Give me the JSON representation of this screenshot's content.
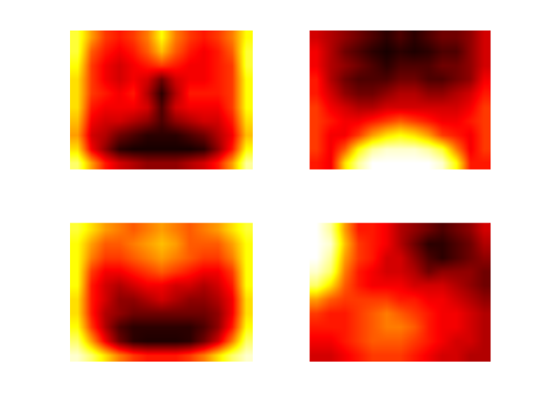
{
  "chart_data": [
    {
      "type": "heatmap",
      "color": "hot",
      "tick_labels": false,
      "zlim": [
        0,
        1
      ],
      "cells": [
        [
          0.8,
          0.6,
          0.45,
          0.4,
          0.45,
          0.55,
          0.75,
          0.55,
          0.45,
          0.4,
          0.45,
          0.55,
          0.75
        ],
        [
          0.8,
          0.5,
          0.4,
          0.35,
          0.4,
          0.5,
          0.65,
          0.5,
          0.4,
          0.35,
          0.4,
          0.5,
          0.8
        ],
        [
          0.75,
          0.45,
          0.35,
          0.3,
          0.35,
          0.4,
          0.45,
          0.4,
          0.35,
          0.35,
          0.4,
          0.45,
          0.8
        ],
        [
          0.7,
          0.45,
          0.35,
          0.3,
          0.35,
          0.3,
          0.15,
          0.3,
          0.35,
          0.35,
          0.4,
          0.45,
          0.75
        ],
        [
          0.7,
          0.45,
          0.4,
          0.35,
          0.4,
          0.25,
          0.05,
          0.25,
          0.4,
          0.4,
          0.4,
          0.45,
          0.75
        ],
        [
          0.7,
          0.4,
          0.35,
          0.35,
          0.35,
          0.3,
          0.1,
          0.3,
          0.35,
          0.35,
          0.35,
          0.45,
          0.75
        ],
        [
          0.65,
          0.35,
          0.3,
          0.3,
          0.25,
          0.2,
          0.1,
          0.2,
          0.25,
          0.3,
          0.3,
          0.4,
          0.7
        ],
        [
          0.6,
          0.3,
          0.25,
          0.15,
          0.1,
          0.05,
          0.05,
          0.05,
          0.1,
          0.15,
          0.25,
          0.35,
          0.65
        ],
        [
          0.7,
          0.35,
          0.2,
          0.05,
          0.02,
          0.02,
          0.02,
          0.02,
          0.02,
          0.05,
          0.2,
          0.4,
          0.75
        ],
        [
          0.85,
          0.6,
          0.4,
          0.3,
          0.25,
          0.2,
          0.2,
          0.2,
          0.25,
          0.3,
          0.4,
          0.6,
          0.9
        ]
      ]
    },
    {
      "type": "heatmap",
      "color": "hot",
      "tick_labels": false,
      "zlim": [
        0,
        1
      ],
      "cells": [
        [
          0.3,
          0.25,
          0.2,
          0.15,
          0.1,
          0.05,
          0.1,
          0.05,
          0.1,
          0.15,
          0.15,
          0.2,
          0.3
        ],
        [
          0.35,
          0.25,
          0.15,
          0.1,
          0.05,
          0.02,
          0.05,
          0.03,
          0.05,
          0.1,
          0.1,
          0.2,
          0.3
        ],
        [
          0.35,
          0.25,
          0.2,
          0.15,
          0.1,
          0.05,
          0.1,
          0.1,
          0.1,
          0.15,
          0.15,
          0.2,
          0.3
        ],
        [
          0.4,
          0.25,
          0.15,
          0.1,
          0.1,
          0.1,
          0.15,
          0.15,
          0.1,
          0.1,
          0.15,
          0.2,
          0.35
        ],
        [
          0.4,
          0.3,
          0.2,
          0.15,
          0.15,
          0.2,
          0.25,
          0.25,
          0.2,
          0.2,
          0.25,
          0.3,
          0.4
        ],
        [
          0.45,
          0.35,
          0.3,
          0.25,
          0.25,
          0.3,
          0.3,
          0.3,
          0.3,
          0.3,
          0.3,
          0.35,
          0.45
        ],
        [
          0.45,
          0.4,
          0.35,
          0.35,
          0.4,
          0.45,
          0.5,
          0.45,
          0.4,
          0.35,
          0.35,
          0.4,
          0.45
        ],
        [
          0.45,
          0.35,
          0.35,
          0.45,
          0.6,
          0.7,
          0.75,
          0.7,
          0.6,
          0.45,
          0.4,
          0.35,
          0.45
        ],
        [
          0.45,
          0.35,
          0.5,
          0.75,
          0.9,
          0.95,
          0.95,
          0.95,
          0.9,
          0.8,
          0.55,
          0.35,
          0.45
        ],
        [
          0.4,
          0.35,
          0.7,
          0.9,
          1,
          1,
          1,
          1,
          1,
          0.95,
          0.75,
          0.4,
          0.4
        ]
      ]
    },
    {
      "type": "heatmap",
      "color": "hot",
      "tick_labels": false,
      "zlim": [
        0,
        1
      ],
      "cells": [
        [
          0.8,
          0.7,
          0.6,
          0.55,
          0.5,
          0.55,
          0.6,
          0.55,
          0.5,
          0.55,
          0.6,
          0.7,
          0.8
        ],
        [
          0.75,
          0.6,
          0.5,
          0.5,
          0.55,
          0.6,
          0.65,
          0.6,
          0.5,
          0.5,
          0.5,
          0.6,
          0.75
        ],
        [
          0.75,
          0.55,
          0.45,
          0.45,
          0.5,
          0.55,
          0.6,
          0.55,
          0.5,
          0.45,
          0.45,
          0.55,
          0.75
        ],
        [
          0.75,
          0.45,
          0.35,
          0.35,
          0.4,
          0.45,
          0.5,
          0.45,
          0.4,
          0.35,
          0.35,
          0.45,
          0.75
        ],
        [
          0.75,
          0.4,
          0.3,
          0.25,
          0.3,
          0.35,
          0.35,
          0.3,
          0.3,
          0.25,
          0.3,
          0.4,
          0.75
        ],
        [
          0.7,
          0.4,
          0.3,
          0.2,
          0.2,
          0.25,
          0.3,
          0.25,
          0.2,
          0.2,
          0.25,
          0.35,
          0.7
        ],
        [
          0.7,
          0.4,
          0.25,
          0.2,
          0.15,
          0.15,
          0.15,
          0.15,
          0.15,
          0.15,
          0.2,
          0.35,
          0.7
        ],
        [
          0.75,
          0.45,
          0.25,
          0.1,
          0.05,
          0.05,
          0.05,
          0.05,
          0.05,
          0.1,
          0.2,
          0.4,
          0.75
        ],
        [
          0.85,
          0.6,
          0.35,
          0.15,
          0.05,
          0.03,
          0.03,
          0.03,
          0.05,
          0.15,
          0.3,
          0.55,
          0.85
        ],
        [
          0.95,
          0.85,
          0.7,
          0.55,
          0.45,
          0.4,
          0.4,
          0.4,
          0.45,
          0.55,
          0.7,
          0.85,
          0.95
        ]
      ]
    },
    {
      "type": "heatmap",
      "color": "hot",
      "tick_labels": false,
      "zlim": [
        0,
        1
      ],
      "cells": [
        [
          1,
          0.9,
          0.6,
          0.4,
          0.4,
          0.35,
          0.25,
          0.2,
          0.15,
          0.1,
          0.15,
          0.2,
          0.3
        ],
        [
          1,
          0.95,
          0.65,
          0.45,
          0.4,
          0.35,
          0.25,
          0.15,
          0.05,
          0.05,
          0.1,
          0.15,
          0.25
        ],
        [
          1,
          0.9,
          0.6,
          0.45,
          0.4,
          0.3,
          0.3,
          0.2,
          0.1,
          0.05,
          0.1,
          0.15,
          0.2
        ],
        [
          0.95,
          0.85,
          0.55,
          0.4,
          0.35,
          0.3,
          0.3,
          0.25,
          0.15,
          0.2,
          0.2,
          0.2,
          0.15
        ],
        [
          0.85,
          0.7,
          0.5,
          0.4,
          0.35,
          0.35,
          0.35,
          0.3,
          0.3,
          0.3,
          0.25,
          0.2,
          0.15
        ],
        [
          0.6,
          0.5,
          0.45,
          0.45,
          0.45,
          0.45,
          0.4,
          0.4,
          0.35,
          0.35,
          0.3,
          0.25,
          0.2
        ],
        [
          0.45,
          0.4,
          0.4,
          0.45,
          0.5,
          0.55,
          0.5,
          0.45,
          0.4,
          0.35,
          0.35,
          0.3,
          0.25
        ],
        [
          0.4,
          0.4,
          0.4,
          0.45,
          0.5,
          0.55,
          0.55,
          0.5,
          0.4,
          0.35,
          0.35,
          0.3,
          0.25
        ],
        [
          0.35,
          0.35,
          0.4,
          0.45,
          0.5,
          0.5,
          0.5,
          0.45,
          0.4,
          0.35,
          0.3,
          0.3,
          0.25
        ],
        [
          0.3,
          0.3,
          0.35,
          0.4,
          0.45,
          0.45,
          0.45,
          0.4,
          0.35,
          0.3,
          0.3,
          0.25,
          0.25
        ]
      ]
    }
  ]
}
